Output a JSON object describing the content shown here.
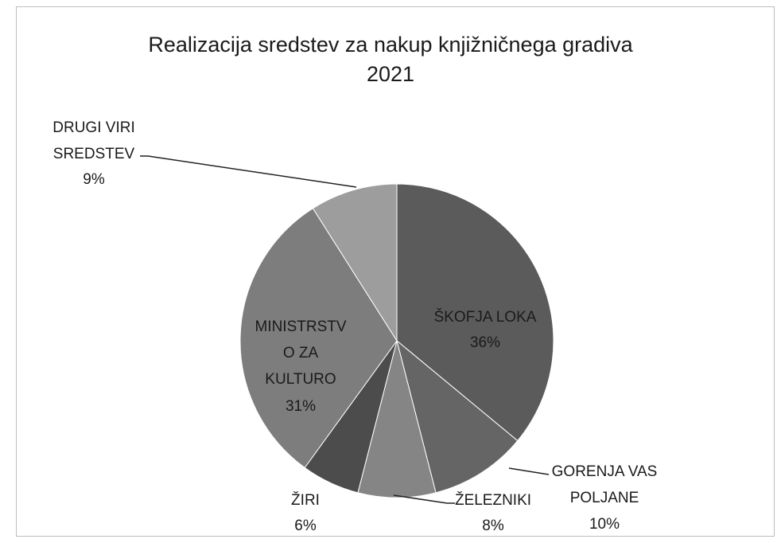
{
  "chart_data": {
    "type": "pie",
    "title": "Realizacija sredstev za nakup knjižničnega gradiva\n2021",
    "categories": [
      "ŠKOFJA  LOKA",
      "GORENJA VAS\nPOLJANE",
      "ŽELEZNIKI",
      "ŽIRI",
      "MINISTRSTV\nO ZA\nKULTURO",
      "DRUGI VIRI\nSREDSTEV"
    ],
    "values": [
      36,
      10,
      8,
      6,
      31,
      9
    ],
    "value_labels": [
      "36%",
      "10%",
      "8%",
      "6%",
      "31%",
      "9%"
    ],
    "colors": [
      "#5b5b5b",
      "#656565",
      "#858585",
      "#4c4c4c",
      "#7d7d7d",
      "#9d9d9d"
    ]
  }
}
